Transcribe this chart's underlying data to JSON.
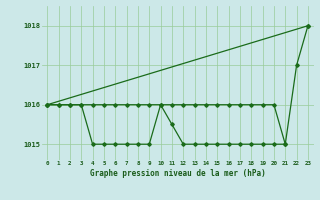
{
  "title": "Graphe pression niveau de la mer (hPa)",
  "background_color": "#cce8e8",
  "grid_color": "#99cc99",
  "line_color": "#1a6b1a",
  "xlim": [
    -0.5,
    23.5
  ],
  "ylim": [
    1014.6,
    1018.5
  ],
  "yticks": [
    1015,
    1016,
    1017,
    1018
  ],
  "xticks": [
    0,
    1,
    2,
    3,
    4,
    5,
    6,
    7,
    8,
    9,
    10,
    11,
    12,
    13,
    14,
    15,
    16,
    17,
    18,
    19,
    20,
    21,
    22,
    23
  ],
  "series1_x": [
    0,
    23
  ],
  "series1_y": [
    1016.0,
    1018.0
  ],
  "series2_x": [
    0,
    1,
    2,
    3,
    4,
    5,
    6,
    7,
    8,
    9,
    10,
    11,
    12,
    13,
    14,
    15,
    16,
    17,
    18,
    19,
    20,
    21
  ],
  "series2_y": [
    1016.0,
    1016.0,
    1016.0,
    1016.0,
    1015.0,
    1015.0,
    1015.0,
    1015.0,
    1015.0,
    1015.0,
    1016.0,
    1015.5,
    1015.0,
    1015.0,
    1015.0,
    1015.0,
    1015.0,
    1015.0,
    1015.0,
    1015.0,
    1015.0,
    1015.0
  ],
  "series3_x": [
    0,
    1,
    2,
    3,
    4,
    5,
    6,
    7,
    8,
    9,
    10,
    11,
    12,
    13,
    14,
    15,
    16,
    17,
    18,
    19,
    20,
    21,
    22,
    23
  ],
  "series3_y": [
    1016.0,
    1016.0,
    1016.0,
    1016.0,
    1016.0,
    1016.0,
    1016.0,
    1016.0,
    1016.0,
    1016.0,
    1016.0,
    1016.0,
    1016.0,
    1016.0,
    1016.0,
    1016.0,
    1016.0,
    1016.0,
    1016.0,
    1016.0,
    1016.0,
    1015.0,
    1017.0,
    1018.0
  ]
}
